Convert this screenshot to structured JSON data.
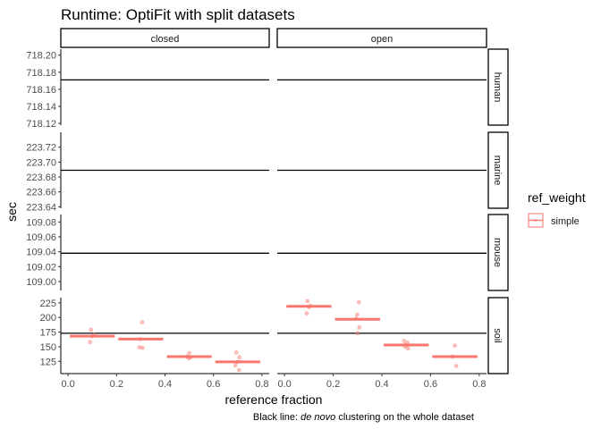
{
  "chart_data": {
    "type": "scatter",
    "title": "Runtime: OptiFit with split datasets",
    "xlabel": "reference fraction",
    "ylabel": "sec",
    "caption_prefix": "Black line: ",
    "caption_italic": "de novo",
    "caption_suffix": " clustering on the whole dataset",
    "col_facets": [
      "closed",
      "open"
    ],
    "row_facets": [
      "human",
      "marine",
      "mouse",
      "soil"
    ],
    "xlim": [
      -0.03,
      0.83
    ],
    "x_ticks": [
      0.0,
      0.2,
      0.4,
      0.6,
      0.8
    ],
    "x_tick_labels": [
      "0.0",
      "0.2",
      "0.4",
      "0.6",
      "0.8"
    ],
    "legend": {
      "title": "ref_weight",
      "entries": [
        {
          "label": "simple",
          "color": "#F8766D"
        }
      ],
      "position": "right"
    },
    "colors": {
      "series": "#F8766D",
      "reference_line": "#000000",
      "strip_border": "#000000"
    },
    "grid": false,
    "rows": [
      {
        "name": "human",
        "ylim": [
          718.118,
          718.207
        ],
        "ticks": [
          718.12,
          718.14,
          718.16,
          718.18,
          718.2
        ],
        "tick_labels": [
          "718.12",
          "718.14",
          "718.16",
          "718.18",
          "718.20"
        ],
        "hline": 718.171
      },
      {
        "name": "marine",
        "ylim": [
          223.638,
          223.74
        ],
        "ticks": [
          223.64,
          223.66,
          223.68,
          223.7,
          223.72
        ],
        "tick_labels": [
          "223.64",
          "223.66",
          "223.68",
          "223.70",
          "223.72"
        ],
        "hline": 223.689
      },
      {
        "name": "mouse",
        "ylim": [
          108.988,
          109.09
        ],
        "ticks": [
          109.0,
          109.02,
          109.04,
          109.06,
          109.08
        ],
        "tick_labels": [
          "109.00",
          "109.02",
          "109.04",
          "109.06",
          "109.08"
        ],
        "hline": 109.038
      },
      {
        "name": "soil",
        "ylim": [
          104,
          234
        ],
        "ticks": [
          125,
          150,
          175,
          200,
          225
        ],
        "tick_labels": [
          "125",
          "150",
          "175",
          "200",
          "225"
        ],
        "hline": 173
      }
    ],
    "panels": [
      {
        "row": "soil",
        "col": "closed",
        "medians": [
          {
            "x": 0.1,
            "y": 168
          },
          {
            "x": 0.3,
            "y": 163
          },
          {
            "x": 0.5,
            "y": 133
          },
          {
            "x": 0.7,
            "y": 124
          }
        ],
        "points": [
          {
            "x": 0.1,
            "y": 179
          },
          {
            "x": 0.1,
            "y": 170
          },
          {
            "x": 0.1,
            "y": 168
          },
          {
            "x": 0.1,
            "y": 158
          },
          {
            "x": 0.3,
            "y": 192
          },
          {
            "x": 0.3,
            "y": 163
          },
          {
            "x": 0.3,
            "y": 149
          },
          {
            "x": 0.3,
            "y": 148
          },
          {
            "x": 0.5,
            "y": 139
          },
          {
            "x": 0.5,
            "y": 133
          },
          {
            "x": 0.5,
            "y": 132
          },
          {
            "x": 0.5,
            "y": 130
          },
          {
            "x": 0.7,
            "y": 140
          },
          {
            "x": 0.7,
            "y": 132
          },
          {
            "x": 0.7,
            "y": 124
          },
          {
            "x": 0.7,
            "y": 118
          },
          {
            "x": 0.7,
            "y": 110
          }
        ]
      },
      {
        "row": "soil",
        "col": "open",
        "medians": [
          {
            "x": 0.1,
            "y": 219
          },
          {
            "x": 0.3,
            "y": 197
          },
          {
            "x": 0.5,
            "y": 153
          },
          {
            "x": 0.7,
            "y": 133
          }
        ],
        "points": [
          {
            "x": 0.1,
            "y": 228
          },
          {
            "x": 0.1,
            "y": 220
          },
          {
            "x": 0.1,
            "y": 218
          },
          {
            "x": 0.1,
            "y": 207
          },
          {
            "x": 0.3,
            "y": 226
          },
          {
            "x": 0.3,
            "y": 205
          },
          {
            "x": 0.3,
            "y": 198
          },
          {
            "x": 0.3,
            "y": 183
          },
          {
            "x": 0.3,
            "y": 173
          },
          {
            "x": 0.5,
            "y": 160
          },
          {
            "x": 0.5,
            "y": 157
          },
          {
            "x": 0.5,
            "y": 153
          },
          {
            "x": 0.5,
            "y": 150
          },
          {
            "x": 0.5,
            "y": 147
          },
          {
            "x": 0.7,
            "y": 152
          },
          {
            "x": 0.7,
            "y": 133
          },
          {
            "x": 0.7,
            "y": 117
          }
        ]
      }
    ]
  }
}
